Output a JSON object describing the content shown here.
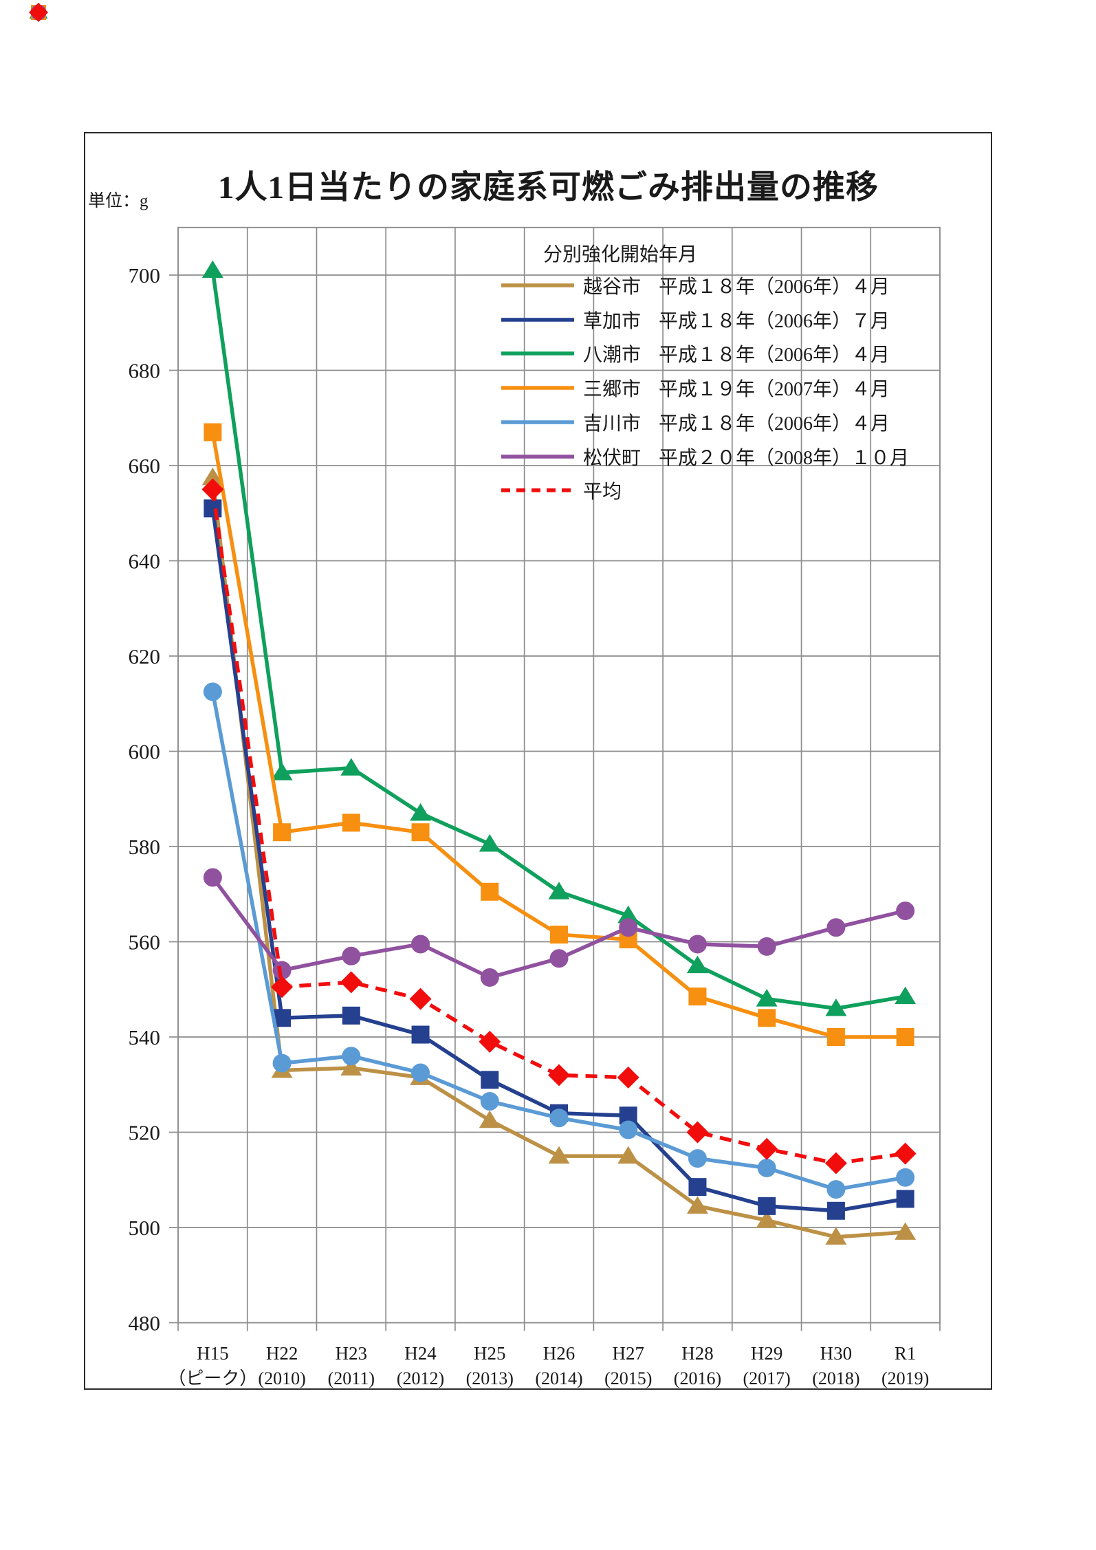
{
  "page": {
    "title": "1人1日当たりの家庭系可燃ごみ排出量の推移",
    "unit_label": "単位：g"
  },
  "legend": {
    "header": "分別強化開始年月"
  },
  "chart_data": {
    "type": "line",
    "title": "1人1日当たりの家庭系可燃ごみ排出量の推移",
    "ylabel": "単位：g",
    "grid": true,
    "legend_position": "top-right-inside",
    "x_categories": [
      {
        "line1": "H15",
        "line2": "（ピーク）"
      },
      {
        "line1": "H22",
        "line2": "(2010)"
      },
      {
        "line1": "H23",
        "line2": "(2011)"
      },
      {
        "line1": "H24",
        "line2": "(2012)"
      },
      {
        "line1": "H25",
        "line2": "(2013)"
      },
      {
        "line1": "H26",
        "line2": "(2014)"
      },
      {
        "line1": "H27",
        "line2": "(2015)"
      },
      {
        "line1": "H28",
        "line2": "(2016)"
      },
      {
        "line1": "H29",
        "line2": "(2017)"
      },
      {
        "line1": "H30",
        "line2": "(2018)"
      },
      {
        "line1": "R1",
        "line2": "(2019)"
      }
    ],
    "yaxis": {
      "min": 480,
      "max": 710,
      "tick_min": 480,
      "tick_max": 700,
      "tick_step": 20
    },
    "series": [
      {
        "key": "koshigaya",
        "name": "越谷市",
        "start_note": "平成１８年（2006年）４月",
        "color": "#BC9146",
        "marker": "triangle",
        "dashed": false,
        "values": [
          657.5,
          533,
          533.5,
          531.5,
          522.5,
          515,
          515,
          504.5,
          501.5,
          498,
          499
        ]
      },
      {
        "key": "soka",
        "name": "草加市",
        "start_note": "平成１８年（2006年）７月",
        "color": "#24408F",
        "marker": "square",
        "dashed": false,
        "values": [
          651,
          544,
          544.5,
          540.5,
          531,
          524,
          523.5,
          508.5,
          504.5,
          503.5,
          506
        ]
      },
      {
        "key": "yashio",
        "name": "八潮市",
        "start_note": "平成１８年（2006年）４月",
        "color": "#0EA05C",
        "marker": "triangle",
        "dashed": false,
        "values": [
          701,
          595.5,
          596.5,
          587,
          580.5,
          570.5,
          565.5,
          555,
          548,
          546,
          548.5
        ]
      },
      {
        "key": "misato",
        "name": "三郷市",
        "start_note": "平成１９年（2007年）４月",
        "color": "#F78F10",
        "marker": "square",
        "dashed": false,
        "values": [
          667,
          583,
          585,
          583,
          570.5,
          561.5,
          560.5,
          548.5,
          544,
          540,
          540
        ]
      },
      {
        "key": "yoshikawa",
        "name": "吉川市",
        "start_note": "平成１８年（2006年）４月",
        "color": "#5B9BD5",
        "marker": "circle",
        "dashed": false,
        "values": [
          612.5,
          534.5,
          536,
          532.5,
          526.5,
          523,
          520.5,
          514.5,
          512.5,
          508,
          510.5
        ]
      },
      {
        "key": "matsubushi",
        "name": "松伏町",
        "start_note": "平成２０年（2008年）１０月",
        "color": "#90519F",
        "marker": "circle",
        "dashed": false,
        "values": [
          573.5,
          554,
          557,
          559.5,
          552.5,
          556.5,
          563,
          559.5,
          559,
          563,
          566.5
        ]
      },
      {
        "key": "average",
        "name": "平均",
        "start_note": "",
        "color": "#F20D0D",
        "marker": "diamond",
        "dashed": true,
        "values": [
          655,
          550.5,
          551.5,
          548,
          539,
          532,
          531.5,
          520,
          516.5,
          513.5,
          515.5
        ]
      }
    ]
  }
}
